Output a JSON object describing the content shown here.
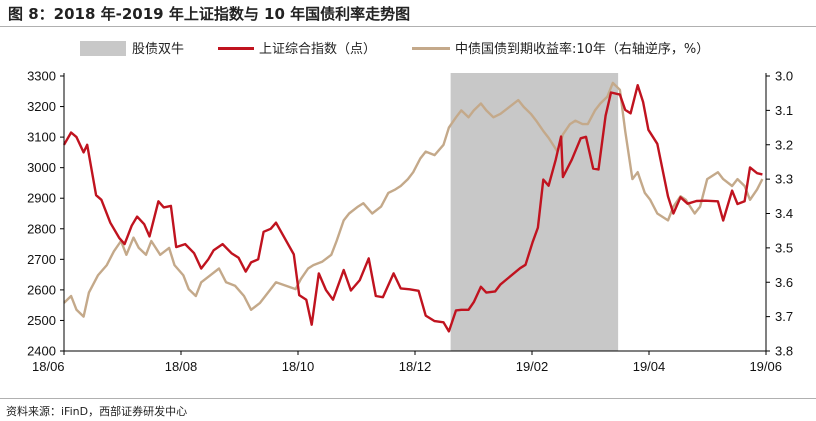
{
  "title": "图 8：2018 年-2019 年上证指数与 10 年国债利率走势图",
  "source": "资料来源：iFinD，西部证券研发中心",
  "colors": {
    "shade": "#c8c8c8",
    "index_line": "#c0131f",
    "yield_line": "#c4a98a",
    "axis": "#000000"
  },
  "chart_data": {
    "type": "line",
    "title": "图 8：2018 年-2019 年上证指数与 10 年国债利率走势图",
    "legend": {
      "placement": "top",
      "entries": [
        "股债双牛",
        "上证综合指数（点）",
        "中债国债到期收益率:10年（右轴逆序，%）"
      ]
    },
    "x_labels": [
      "18/06",
      "18/08",
      "18/10",
      "18/12",
      "19/02",
      "19/04",
      "19/06"
    ],
    "x_range": [
      "2018-06-01",
      "2019-06-30"
    ],
    "y_left": {
      "range": [
        2400,
        3300
      ],
      "ticks": [
        3300,
        3200,
        3100,
        3000,
        2900,
        2800,
        2700,
        2600,
        2500,
        2400
      ]
    },
    "y_right": {
      "range": [
        3.0,
        3.8
      ],
      "inverted": true,
      "ticks": [
        "3.0",
        "3.1",
        "3.2",
        "3.3",
        "3.4",
        "3.5",
        "3.6",
        "3.7",
        "3.8"
      ]
    },
    "shaded_region": {
      "label": "股债双牛",
      "start": "2019-01-04",
      "end": "2019-04-08"
    },
    "grid": false,
    "series": [
      {
        "name": "上证综合指数（点）",
        "axis": "left",
        "points": [
          [
            "2018-06-01",
            3075
          ],
          [
            "2018-06-05",
            3115
          ],
          [
            "2018-06-08",
            3100
          ],
          [
            "2018-06-12",
            3050
          ],
          [
            "2018-06-14",
            3075
          ],
          [
            "2018-06-19",
            2910
          ],
          [
            "2018-06-22",
            2895
          ],
          [
            "2018-06-27",
            2820
          ],
          [
            "2018-07-02",
            2770
          ],
          [
            "2018-07-05",
            2750
          ],
          [
            "2018-07-09",
            2810
          ],
          [
            "2018-07-12",
            2840
          ],
          [
            "2018-07-16",
            2815
          ],
          [
            "2018-07-19",
            2775
          ],
          [
            "2018-07-24",
            2890
          ],
          [
            "2018-07-27",
            2870
          ],
          [
            "2018-07-31",
            2875
          ],
          [
            "2018-08-03",
            2740
          ],
          [
            "2018-08-08",
            2750
          ],
          [
            "2018-08-13",
            2720
          ],
          [
            "2018-08-17",
            2670
          ],
          [
            "2018-08-21",
            2700
          ],
          [
            "2018-08-24",
            2730
          ],
          [
            "2018-08-29",
            2750
          ],
          [
            "2018-09-03",
            2720
          ],
          [
            "2018-09-07",
            2705
          ],
          [
            "2018-09-11",
            2660
          ],
          [
            "2018-09-14",
            2690
          ],
          [
            "2018-09-18",
            2700
          ],
          [
            "2018-09-21",
            2790
          ],
          [
            "2018-09-25",
            2800
          ],
          [
            "2018-09-28",
            2820
          ],
          [
            "2018-10-08",
            2716
          ],
          [
            "2018-10-11",
            2583
          ],
          [
            "2018-10-15",
            2568
          ],
          [
            "2018-10-18",
            2486
          ],
          [
            "2018-10-22",
            2654
          ],
          [
            "2018-10-26",
            2600
          ],
          [
            "2018-10-30",
            2568
          ],
          [
            "2018-11-05",
            2665
          ],
          [
            "2018-11-09",
            2598
          ],
          [
            "2018-11-14",
            2632
          ],
          [
            "2018-11-19",
            2703
          ],
          [
            "2018-11-23",
            2580
          ],
          [
            "2018-11-27",
            2576
          ],
          [
            "2018-12-03",
            2654
          ],
          [
            "2018-12-07",
            2605
          ],
          [
            "2018-12-12",
            2602
          ],
          [
            "2018-12-17",
            2597
          ],
          [
            "2018-12-21",
            2516
          ],
          [
            "2018-12-26",
            2498
          ],
          [
            "2018-12-31",
            2494
          ],
          [
            "2019-01-03",
            2464
          ],
          [
            "2019-01-07",
            2533
          ],
          [
            "2019-01-10",
            2535
          ],
          [
            "2019-01-14",
            2535
          ],
          [
            "2019-01-17",
            2560
          ],
          [
            "2019-01-21",
            2610
          ],
          [
            "2019-01-24",
            2591
          ],
          [
            "2019-01-29",
            2595
          ],
          [
            "2019-02-01",
            2618
          ],
          [
            "2019-02-12",
            2671
          ],
          [
            "2019-02-15",
            2682
          ],
          [
            "2019-02-19",
            2756
          ],
          [
            "2019-02-22",
            2804
          ],
          [
            "2019-02-25",
            2961
          ],
          [
            "2019-02-28",
            2941
          ],
          [
            "2019-03-04",
            3027
          ],
          [
            "2019-03-07",
            3102
          ],
          [
            "2019-03-08",
            2969
          ],
          [
            "2019-03-13",
            3026
          ],
          [
            "2019-03-18",
            3096
          ],
          [
            "2019-03-21",
            3101
          ],
          [
            "2019-03-25",
            2997
          ],
          [
            "2019-03-28",
            2994
          ],
          [
            "2019-04-01",
            3170
          ],
          [
            "2019-04-04",
            3246
          ],
          [
            "2019-04-09",
            3239
          ],
          [
            "2019-04-12",
            3189
          ],
          [
            "2019-04-15",
            3178
          ],
          [
            "2019-04-19",
            3270
          ],
          [
            "2019-04-22",
            3215
          ],
          [
            "2019-04-25",
            3124
          ],
          [
            "2019-04-30",
            3078
          ],
          [
            "2019-05-06",
            2906
          ],
          [
            "2019-05-09",
            2850
          ],
          [
            "2019-05-13",
            2903
          ],
          [
            "2019-05-17",
            2882
          ],
          [
            "2019-05-22",
            2891
          ],
          [
            "2019-05-27",
            2892
          ],
          [
            "2019-06-03",
            2890
          ],
          [
            "2019-06-06",
            2827
          ],
          [
            "2019-06-11",
            2925
          ],
          [
            "2019-06-14",
            2881
          ],
          [
            "2019-06-18",
            2890
          ],
          [
            "2019-06-21",
            3001
          ],
          [
            "2019-06-25",
            2982
          ],
          [
            "2019-06-28",
            2978
          ]
        ]
      },
      {
        "name": "中债国债到期收益率:10年（右轴逆序，%）",
        "axis": "right",
        "points": [
          [
            "2018-06-01",
            3.66
          ],
          [
            "2018-06-05",
            3.64
          ],
          [
            "2018-06-08",
            3.68
          ],
          [
            "2018-06-12",
            3.7
          ],
          [
            "2018-06-15",
            3.63
          ],
          [
            "2018-06-20",
            3.58
          ],
          [
            "2018-06-25",
            3.55
          ],
          [
            "2018-06-29",
            3.51
          ],
          [
            "2018-07-03",
            3.48
          ],
          [
            "2018-07-06",
            3.52
          ],
          [
            "2018-07-10",
            3.47
          ],
          [
            "2018-07-13",
            3.5
          ],
          [
            "2018-07-17",
            3.52
          ],
          [
            "2018-07-20",
            3.48
          ],
          [
            "2018-07-25",
            3.52
          ],
          [
            "2018-07-30",
            3.5
          ],
          [
            "2018-08-02",
            3.55
          ],
          [
            "2018-08-07",
            3.58
          ],
          [
            "2018-08-10",
            3.62
          ],
          [
            "2018-08-14",
            3.64
          ],
          [
            "2018-08-17",
            3.6
          ],
          [
            "2018-08-22",
            3.58
          ],
          [
            "2018-08-27",
            3.56
          ],
          [
            "2018-08-31",
            3.6
          ],
          [
            "2018-09-05",
            3.61
          ],
          [
            "2018-09-10",
            3.64
          ],
          [
            "2018-09-14",
            3.68
          ],
          [
            "2018-09-19",
            3.66
          ],
          [
            "2018-09-25",
            3.62
          ],
          [
            "2018-09-28",
            3.6
          ],
          [
            "2018-10-09",
            3.62
          ],
          [
            "2018-10-12",
            3.59
          ],
          [
            "2018-10-16",
            3.56
          ],
          [
            "2018-10-19",
            3.55
          ],
          [
            "2018-10-24",
            3.54
          ],
          [
            "2018-10-29",
            3.52
          ],
          [
            "2018-11-01",
            3.48
          ],
          [
            "2018-11-05",
            3.42
          ],
          [
            "2018-11-08",
            3.4
          ],
          [
            "2018-11-13",
            3.38
          ],
          [
            "2018-11-16",
            3.37
          ],
          [
            "2018-11-21",
            3.4
          ],
          [
            "2018-11-26",
            3.38
          ],
          [
            "2018-11-30",
            3.34
          ],
          [
            "2018-12-04",
            3.33
          ],
          [
            "2018-12-07",
            3.32
          ],
          [
            "2018-12-11",
            3.3
          ],
          [
            "2018-12-14",
            3.28
          ],
          [
            "2018-12-18",
            3.24
          ],
          [
            "2018-12-21",
            3.22
          ],
          [
            "2018-12-26",
            3.23
          ],
          [
            "2018-12-31",
            3.2
          ],
          [
            "2019-01-03",
            3.15
          ],
          [
            "2019-01-07",
            3.12
          ],
          [
            "2019-01-10",
            3.1
          ],
          [
            "2019-01-14",
            3.12
          ],
          [
            "2019-01-17",
            3.1
          ],
          [
            "2019-01-21",
            3.08
          ],
          [
            "2019-01-24",
            3.1
          ],
          [
            "2019-01-28",
            3.12
          ],
          [
            "2019-02-01",
            3.11
          ],
          [
            "2019-02-11",
            3.07
          ],
          [
            "2019-02-14",
            3.09
          ],
          [
            "2019-02-18",
            3.11
          ],
          [
            "2019-02-21",
            3.13
          ],
          [
            "2019-02-25",
            3.16
          ],
          [
            "2019-02-28",
            3.18
          ],
          [
            "2019-03-05",
            3.22
          ],
          [
            "2019-03-08",
            3.17
          ],
          [
            "2019-03-12",
            3.14
          ],
          [
            "2019-03-15",
            3.13
          ],
          [
            "2019-03-19",
            3.14
          ],
          [
            "2019-03-22",
            3.14
          ],
          [
            "2019-03-26",
            3.1
          ],
          [
            "2019-03-29",
            3.08
          ],
          [
            "2019-04-02",
            3.06
          ],
          [
            "2019-04-05",
            3.02
          ],
          [
            "2019-04-09",
            3.04
          ],
          [
            "2019-04-12",
            3.16
          ],
          [
            "2019-04-16",
            3.3
          ],
          [
            "2019-04-19",
            3.28
          ],
          [
            "2019-04-23",
            3.34
          ],
          [
            "2019-04-26",
            3.36
          ],
          [
            "2019-04-30",
            3.4
          ],
          [
            "2019-05-06",
            3.42
          ],
          [
            "2019-05-09",
            3.38
          ],
          [
            "2019-05-13",
            3.35
          ],
          [
            "2019-05-16",
            3.36
          ],
          [
            "2019-05-21",
            3.4
          ],
          [
            "2019-05-24",
            3.38
          ],
          [
            "2019-05-28",
            3.3
          ],
          [
            "2019-06-03",
            3.28
          ],
          [
            "2019-06-06",
            3.3
          ],
          [
            "2019-06-11",
            3.32
          ],
          [
            "2019-06-14",
            3.3
          ],
          [
            "2019-06-18",
            3.32
          ],
          [
            "2019-06-21",
            3.36
          ],
          [
            "2019-06-25",
            3.33
          ],
          [
            "2019-06-28",
            3.3
          ]
        ]
      }
    ]
  }
}
